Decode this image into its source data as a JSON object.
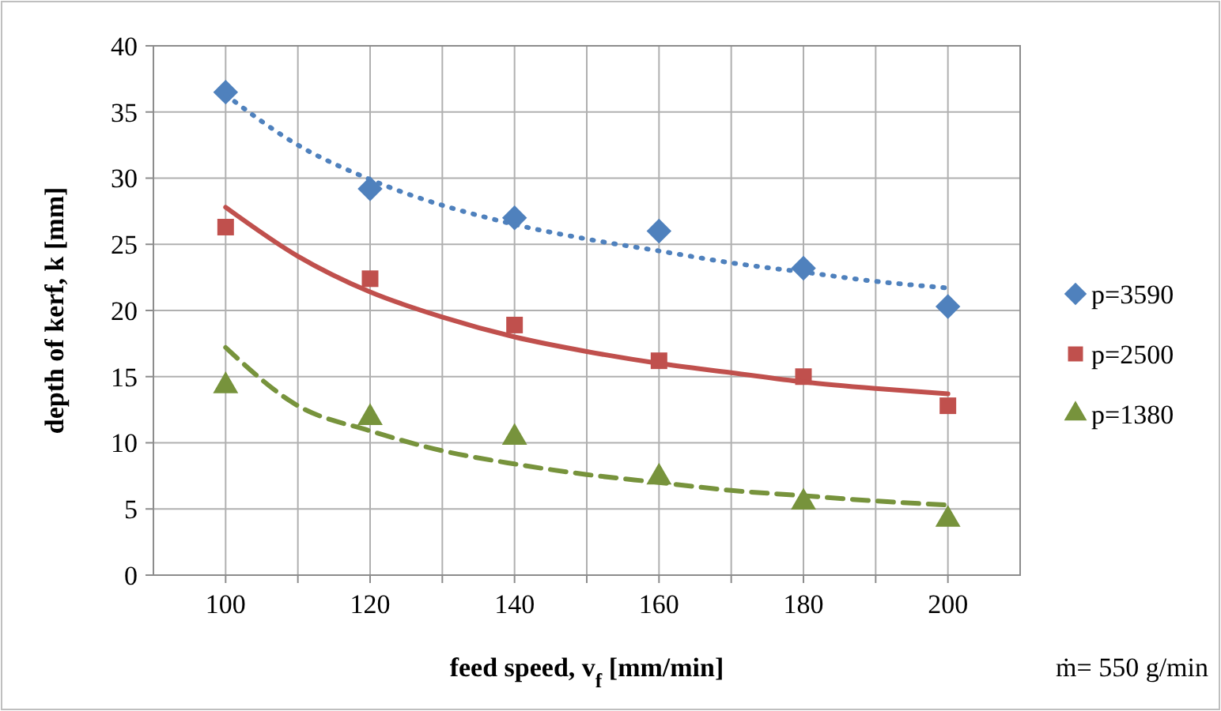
{
  "chart_data": {
    "type": "scatter",
    "xlabel": "feed speed, v$_{f}$ [mm/min]",
    "ylabel": "depth of kerf, k [mm]",
    "annotations": [
      "ṁ= 550 g/min"
    ],
    "xlim": [
      90,
      210
    ],
    "xticks": [
      100,
      {
        "value": 110,
        "label": null
      },
      120,
      {
        "value": 130,
        "label": null
      },
      140,
      {
        "value": 150,
        "label": null
      },
      160,
      {
        "value": 170,
        "label": null
      },
      180,
      {
        "value": 190,
        "label": null
      },
      200
    ],
    "ylim": [
      0,
      40
    ],
    "yticks": [
      0,
      5,
      10,
      15,
      20,
      25,
      30,
      35,
      40
    ],
    "grid": true,
    "legend": "right",
    "series": [
      {
        "name": "p=3590",
        "marker": "diamond",
        "color": "#4f81bd",
        "x": [
          100,
          120,
          140,
          160,
          180,
          200
        ],
        "values": [
          36.5,
          29.2,
          27.0,
          26.0,
          23.2,
          20.3
        ]
      },
      {
        "name": "p=2500",
        "marker": "square",
        "color": "#c0504d",
        "x": [
          100,
          120,
          140,
          160,
          180,
          200
        ],
        "values": [
          26.3,
          22.4,
          18.9,
          16.2,
          15.0,
          12.8
        ]
      },
      {
        "name": "p=1380",
        "marker": "triangle",
        "color": "#77933c",
        "x": [
          100,
          120,
          140,
          160,
          180,
          200
        ],
        "values": [
          14.3,
          11.9,
          10.4,
          7.4,
          5.5,
          4.2
        ]
      },
      {
        "type": "line",
        "line_style": "dotted",
        "color": "#4f81bd",
        "x": [
          100,
          110,
          120,
          140,
          150,
          160,
          170,
          180,
          190,
          200
        ],
        "values": [
          36.3,
          32.5,
          29.9,
          26.5,
          25.4,
          24.5,
          23.6,
          22.9,
          22.2,
          21.7
        ]
      },
      {
        "type": "line",
        "line_style": "solid",
        "color": "#c0504d",
        "x": [
          100,
          110,
          120,
          130,
          140,
          150,
          160,
          170,
          180,
          190,
          200
        ],
        "values": [
          27.8,
          24.1,
          21.4,
          19.5,
          18.0,
          16.9,
          16.0,
          15.3,
          14.6,
          14.1,
          13.7
        ]
      },
      {
        "type": "line",
        "line_style": "dashed",
        "color": "#77933c",
        "x": [
          100,
          110,
          120,
          130,
          140,
          150,
          160,
          170,
          180,
          190,
          200
        ],
        "values": [
          17.2,
          12.8,
          10.9,
          9.4,
          8.4,
          7.6,
          7.0,
          6.4,
          6.0,
          5.6,
          5.3
        ]
      }
    ]
  }
}
